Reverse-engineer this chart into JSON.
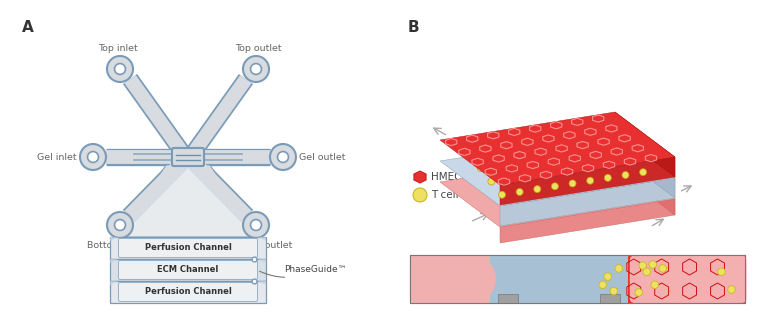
{
  "panel_A_label": "A",
  "panel_B_label": "B",
  "labels": {
    "top_inlet": "Top inlet",
    "top_outlet": "Top outlet",
    "gel_inlet": "Gel inlet",
    "gel_outlet": "Gel outlet",
    "bottom_inlet": "Bottom inlet",
    "bottom_outlet": "Bottom outlet",
    "perfusion_channel": "Perfusion Channel",
    "ecm_channel": "ECM Channel",
    "phaseguide": "PhaseGuide™"
  },
  "legend": {
    "hmec1_label": "HMEC-1",
    "tcell_label": "T cell",
    "hmec1_color": "#E84040",
    "tcell_color": "#EEE060",
    "tcell_outline": "#C8B820"
  },
  "colors": {
    "channel_fill": "#D8DBE0",
    "channel_stroke": "#7A9BB8",
    "channel_inner": "#C8D0D8",
    "label_color": "#666666",
    "red_top": "#E83030",
    "red_hex_line": "#FF7070",
    "red_light": "#F0A0A0",
    "red_medium": "#F07070",
    "red_deep": "#CC2020",
    "ecm_top": "#C8D8E4",
    "ecm_front": "#B0C4D4",
    "ecm_right": "#A0B4C8",
    "bottom_top": "#F0B0B0",
    "bottom_front": "#E89090",
    "bottom_right": "#E08080",
    "yellow": "#EEE060",
    "pink_light": "#F4B0B0",
    "pink_blob": "#F0AAAA",
    "blue_mid": "#A8C0D4",
    "gray_barrier": "#A0A0A0"
  },
  "bg_color": "#FFFFFF"
}
